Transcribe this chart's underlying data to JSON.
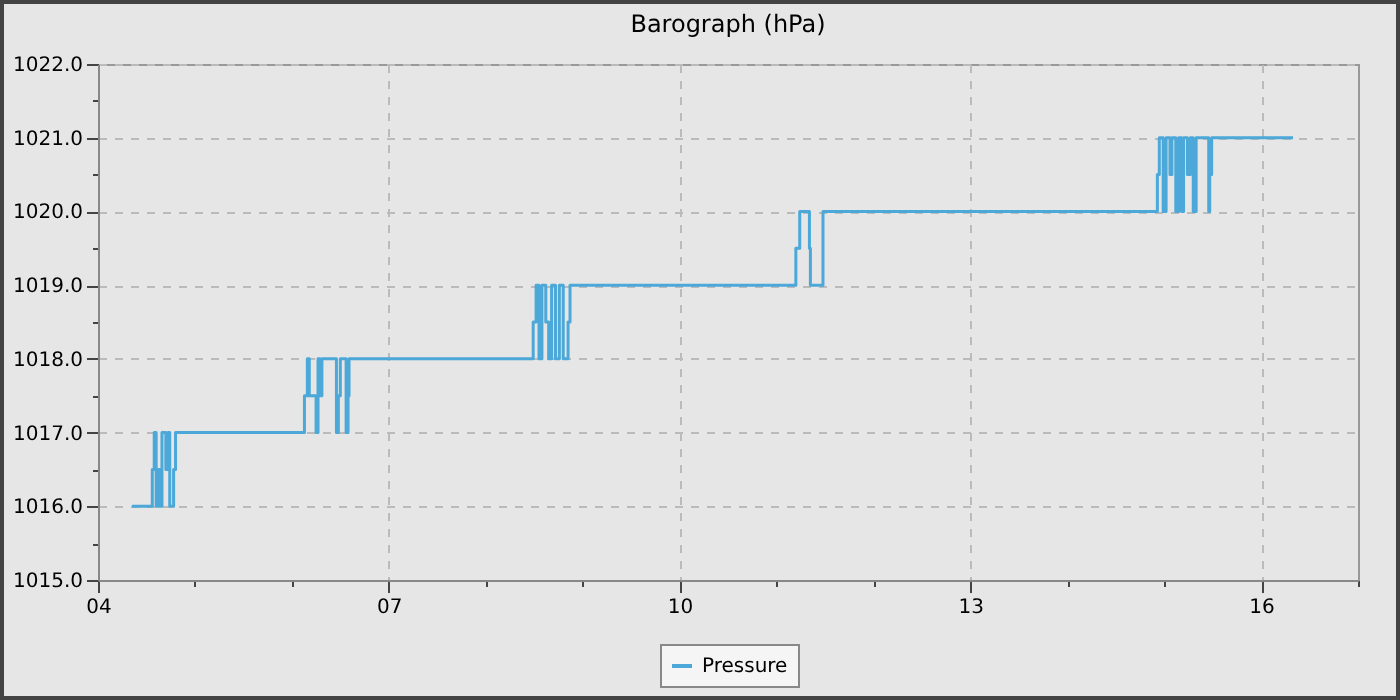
{
  "chart_data": {
    "type": "step",
    "title": "Barograph (hPa)",
    "xlim": [
      4,
      17
    ],
    "xticks": [
      {
        "value": 4,
        "label": "04"
      },
      {
        "value": 5,
        "label": null
      },
      {
        "value": 6,
        "label": null
      },
      {
        "value": 7,
        "label": "07"
      },
      {
        "value": 8,
        "label": null
      },
      {
        "value": 9,
        "label": null
      },
      {
        "value": 10,
        "label": "10"
      },
      {
        "value": 11,
        "label": null
      },
      {
        "value": 12,
        "label": null
      },
      {
        "value": 13,
        "label": "13"
      },
      {
        "value": 14,
        "label": null
      },
      {
        "value": 15,
        "label": null
      },
      {
        "value": 16,
        "label": "16"
      },
      {
        "value": 17,
        "label": null
      }
    ],
    "ylim": [
      1015,
      1022
    ],
    "yticks": [
      {
        "value": 1015,
        "label": "1015.0"
      },
      {
        "value": 1015.5,
        "label": null
      },
      {
        "value": 1016,
        "label": "1016.0"
      },
      {
        "value": 1016.5,
        "label": null
      },
      {
        "value": 1017,
        "label": "1017.0"
      },
      {
        "value": 1017.5,
        "label": null
      },
      {
        "value": 1018,
        "label": "1018.0"
      },
      {
        "value": 1018.5,
        "label": null
      },
      {
        "value": 1019,
        "label": "1019.0"
      },
      {
        "value": 1019.5,
        "label": null
      },
      {
        "value": 1020,
        "label": "1020.0"
      },
      {
        "value": 1020.5,
        "label": null
      },
      {
        "value": 1021,
        "label": "1021.0"
      },
      {
        "value": 1021.5,
        "label": null
      },
      {
        "value": 1022,
        "label": "1022.0"
      }
    ],
    "grid": true,
    "legend": "bottom",
    "marker": "none",
    "line_style": "solid",
    "series": [
      {
        "name": "Pressure",
        "color": "#4ba8d8",
        "x": [
          4.35,
          4.56,
          4.58,
          4.6,
          4.62,
          4.64,
          4.66,
          4.7,
          4.72,
          4.74,
          4.78,
          4.8,
          6.13,
          6.16,
          6.18,
          6.25,
          6.27,
          6.29,
          6.31,
          6.46,
          6.48,
          6.5,
          6.56,
          6.58,
          6.59,
          8.49,
          8.52,
          8.55,
          8.58,
          8.62,
          8.65,
          8.68,
          8.72,
          8.76,
          8.8,
          8.85,
          8.87,
          11.2,
          11.24,
          11.34,
          11.35,
          11.48,
          14.93,
          14.95,
          14.99,
          15.02,
          15.06,
          15.08,
          15.12,
          15.15,
          15.18,
          15.2,
          15.24,
          15.27,
          15.3,
          15.33,
          15.46,
          15.47,
          15.49,
          16.33
        ],
        "values": [
          1016,
          1016.5,
          1017,
          1016,
          1016.5,
          1016,
          1017,
          1016.5,
          1017,
          1016,
          1016.5,
          1017,
          1017.5,
          1018,
          1017.5,
          1017,
          1018,
          1017.5,
          1018,
          1017,
          1017.5,
          1018,
          1017,
          1017.5,
          1018,
          1018.5,
          1019,
          1018,
          1019,
          1018.5,
          1018,
          1019,
          1018,
          1019,
          1018,
          1018.5,
          1019,
          1019.5,
          1020,
          1019.5,
          1019,
          1020,
          1020.5,
          1021,
          1020,
          1021,
          1020.5,
          1021,
          1020,
          1021,
          1020,
          1021,
          1020.5,
          1021,
          1020,
          1021,
          1020,
          1020.5,
          1021,
          1021
        ]
      }
    ]
  }
}
